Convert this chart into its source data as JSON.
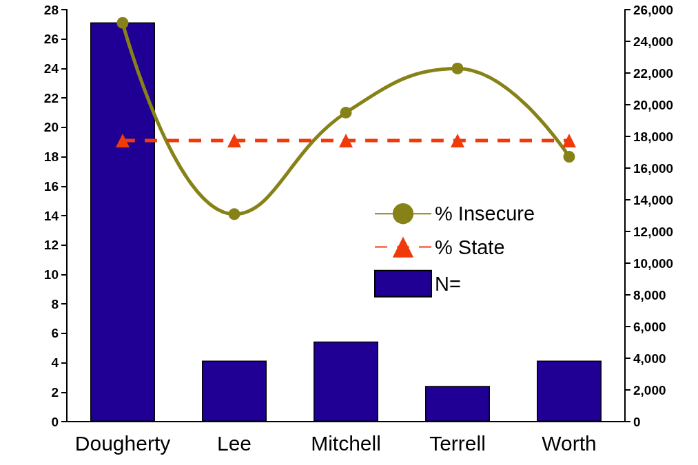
{
  "chart_data": {
    "type": "bar",
    "categories": [
      "Dougherty",
      "Lee",
      "Mitchell",
      "Terrell",
      "Worth"
    ],
    "series": [
      {
        "name": "% Insecure",
        "type": "line",
        "color": "#878217",
        "marker": "circle",
        "line_style": "solid",
        "values": [
          27.1,
          14.1,
          21.0,
          24.0,
          18.0
        ]
      },
      {
        "name": "% State",
        "type": "line",
        "color": "#f03a0a",
        "marker": "triangle",
        "line_style": "dashed",
        "values": [
          19.1,
          19.1,
          19.1,
          19.1,
          19.1
        ]
      },
      {
        "name": "N=",
        "axis": "y2",
        "color": "#200094",
        "values": [
          25200,
          3850,
          5050,
          2250,
          3850
        ]
      }
    ],
    "ylim": [
      0,
      28
    ],
    "yticks": [
      0,
      2,
      4,
      6,
      8,
      10,
      12,
      14,
      16,
      18,
      20,
      22,
      24,
      26,
      28
    ],
    "y2lim": [
      0,
      26000
    ],
    "y2ticks": [
      0,
      {
        "value": 2000,
        "label": "2,000"
      },
      {
        "value": 4000,
        "label": "4,000"
      },
      {
        "value": 6000,
        "label": "6,000"
      },
      {
        "value": 8000,
        "label": "8,000"
      },
      {
        "value": 10000,
        "label": "10,000"
      },
      {
        "value": 12000,
        "label": "12,000"
      },
      {
        "value": 14000,
        "label": "14,000"
      },
      {
        "value": 16000,
        "label": "16,000"
      },
      {
        "value": 18000,
        "label": "18,000"
      },
      {
        "value": 20000,
        "label": "20,000"
      },
      {
        "value": 22000,
        "label": "22,000"
      },
      {
        "value": 24000,
        "label": "24,000"
      },
      {
        "value": 26000,
        "label": "26,000"
      }
    ],
    "grid": false,
    "legend": "right"
  }
}
